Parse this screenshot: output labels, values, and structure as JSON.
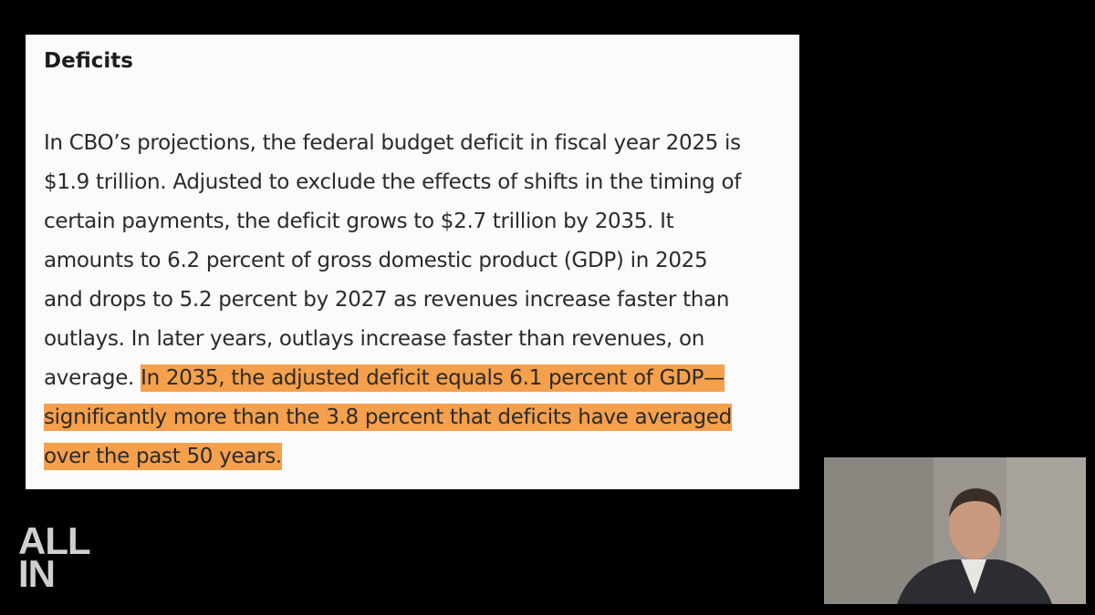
{
  "card": {
    "heading": "Deficits",
    "lines": [
      [
        {
          "text": "In CBO’s projections, the federal budget deficit in fiscal year 2025 is",
          "highlight": false
        }
      ],
      [
        {
          "text": "$1.9 trillion. Adjusted to exclude the effects of shifts in the timing of",
          "highlight": false
        }
      ],
      [
        {
          "text": "certain payments, the deficit grows to $2.7 trillion by 2035. It",
          "highlight": false
        }
      ],
      [
        {
          "text": "amounts to 6.2 percent of gross domestic product (GDP) in 2025",
          "highlight": false
        }
      ],
      [
        {
          "text": "and drops to 5.2 percent by 2027 as revenues increase faster than",
          "highlight": false
        }
      ],
      [
        {
          "text": "outlays. In later years, outlays increase faster than revenues, on",
          "highlight": false
        }
      ],
      [
        {
          "text": "average.",
          "highlight": false
        },
        {
          "text": "In 2035, the adjusted deficit equals 6.1 percent of GDP—",
          "highlight": true
        }
      ],
      [
        {
          "text": "significantly more than the 3.8 percent that deficits have averaged",
          "highlight": true
        }
      ],
      [
        {
          "text": "over the past 50 years.",
          "highlight": true
        }
      ]
    ]
  },
  "logo": {
    "line1": "ALL",
    "line2": "IN"
  }
}
